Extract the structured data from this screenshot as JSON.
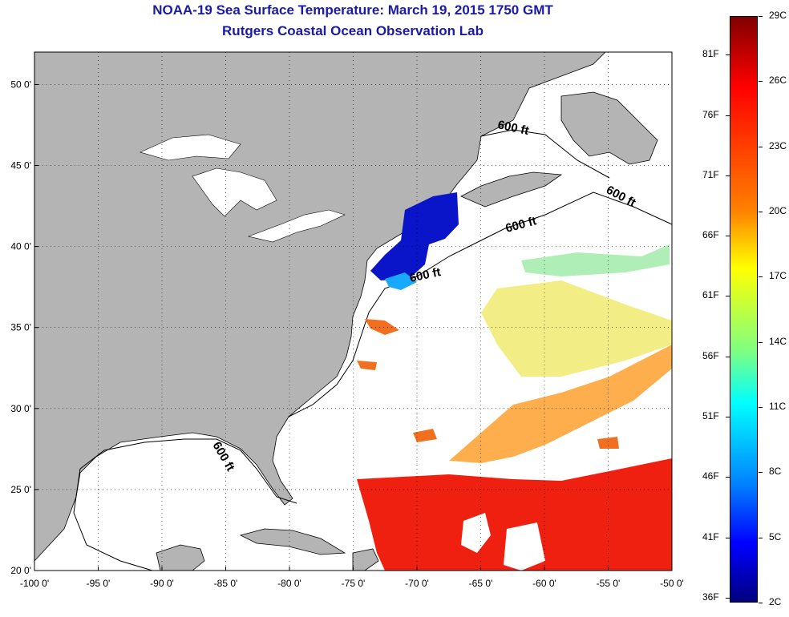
{
  "title": {
    "line1": "NOAA-19 Sea Surface Temperature:  March 19, 2015 1750 GMT",
    "line2": "Rutgers Coastal Ocean Observation Lab"
  },
  "map": {
    "lon_range": [
      -100,
      -50
    ],
    "lat_range": [
      20,
      52
    ],
    "lon_ticks": [
      {
        "value": -100,
        "label": "-100 0'"
      },
      {
        "value": -95,
        "label": "-95 0'"
      },
      {
        "value": -90,
        "label": "-90 0'"
      },
      {
        "value": -85,
        "label": "-85 0'"
      },
      {
        "value": -80,
        "label": "-80 0'"
      },
      {
        "value": -75,
        "label": "-75 0'"
      },
      {
        "value": -70,
        "label": "-70 0'"
      },
      {
        "value": -65,
        "label": "-65 0'"
      },
      {
        "value": -60,
        "label": "-60 0'"
      },
      {
        "value": -55,
        "label": "-55 0'"
      },
      {
        "value": -50,
        "label": "-50 0'"
      }
    ],
    "lat_ticks": [
      {
        "value": 20,
        "label": "20 0'"
      },
      {
        "value": 25,
        "label": "25 0'"
      },
      {
        "value": 30,
        "label": "30 0'"
      },
      {
        "value": 35,
        "label": "35 0'"
      },
      {
        "value": 40,
        "label": "40 0'"
      },
      {
        "value": 45,
        "label": "45 0'"
      },
      {
        "value": 50,
        "label": "50 0'"
      }
    ],
    "contour_labels": [
      "600 ft",
      "600 ft",
      "600 ft",
      "600 ft",
      "600 ft"
    ],
    "land_color": "#b4b4b4",
    "water_color": "#ffffff",
    "grid": "dotted"
  },
  "colorbar": {
    "celsius": [
      {
        "value": 29,
        "label": "29C"
      },
      {
        "value": 26,
        "label": "26C"
      },
      {
        "value": 23,
        "label": "23C"
      },
      {
        "value": 20,
        "label": "20C"
      },
      {
        "value": 17,
        "label": "17C"
      },
      {
        "value": 14,
        "label": "14C"
      },
      {
        "value": 11,
        "label": "11C"
      },
      {
        "value": 8,
        "label": "8C"
      },
      {
        "value": 5,
        "label": "5C"
      },
      {
        "value": 2,
        "label": "2C"
      }
    ],
    "fahrenheit": [
      {
        "value": 81,
        "label": "81F"
      },
      {
        "value": 76,
        "label": "76F"
      },
      {
        "value": 71,
        "label": "71F"
      },
      {
        "value": 66,
        "label": "66F"
      },
      {
        "value": 61,
        "label": "61F"
      },
      {
        "value": 56,
        "label": "56F"
      },
      {
        "value": 51,
        "label": "51F"
      },
      {
        "value": 46,
        "label": "46F"
      },
      {
        "value": 41,
        "label": "41F"
      },
      {
        "value": 36,
        "label": "36F"
      }
    ],
    "range_c": [
      2,
      29
    ],
    "colors": [
      "#800000",
      "#ff0000",
      "#ff8000",
      "#ffff00",
      "#80ff80",
      "#00ffff",
      "#0080ff",
      "#0000ff",
      "#000080"
    ]
  }
}
